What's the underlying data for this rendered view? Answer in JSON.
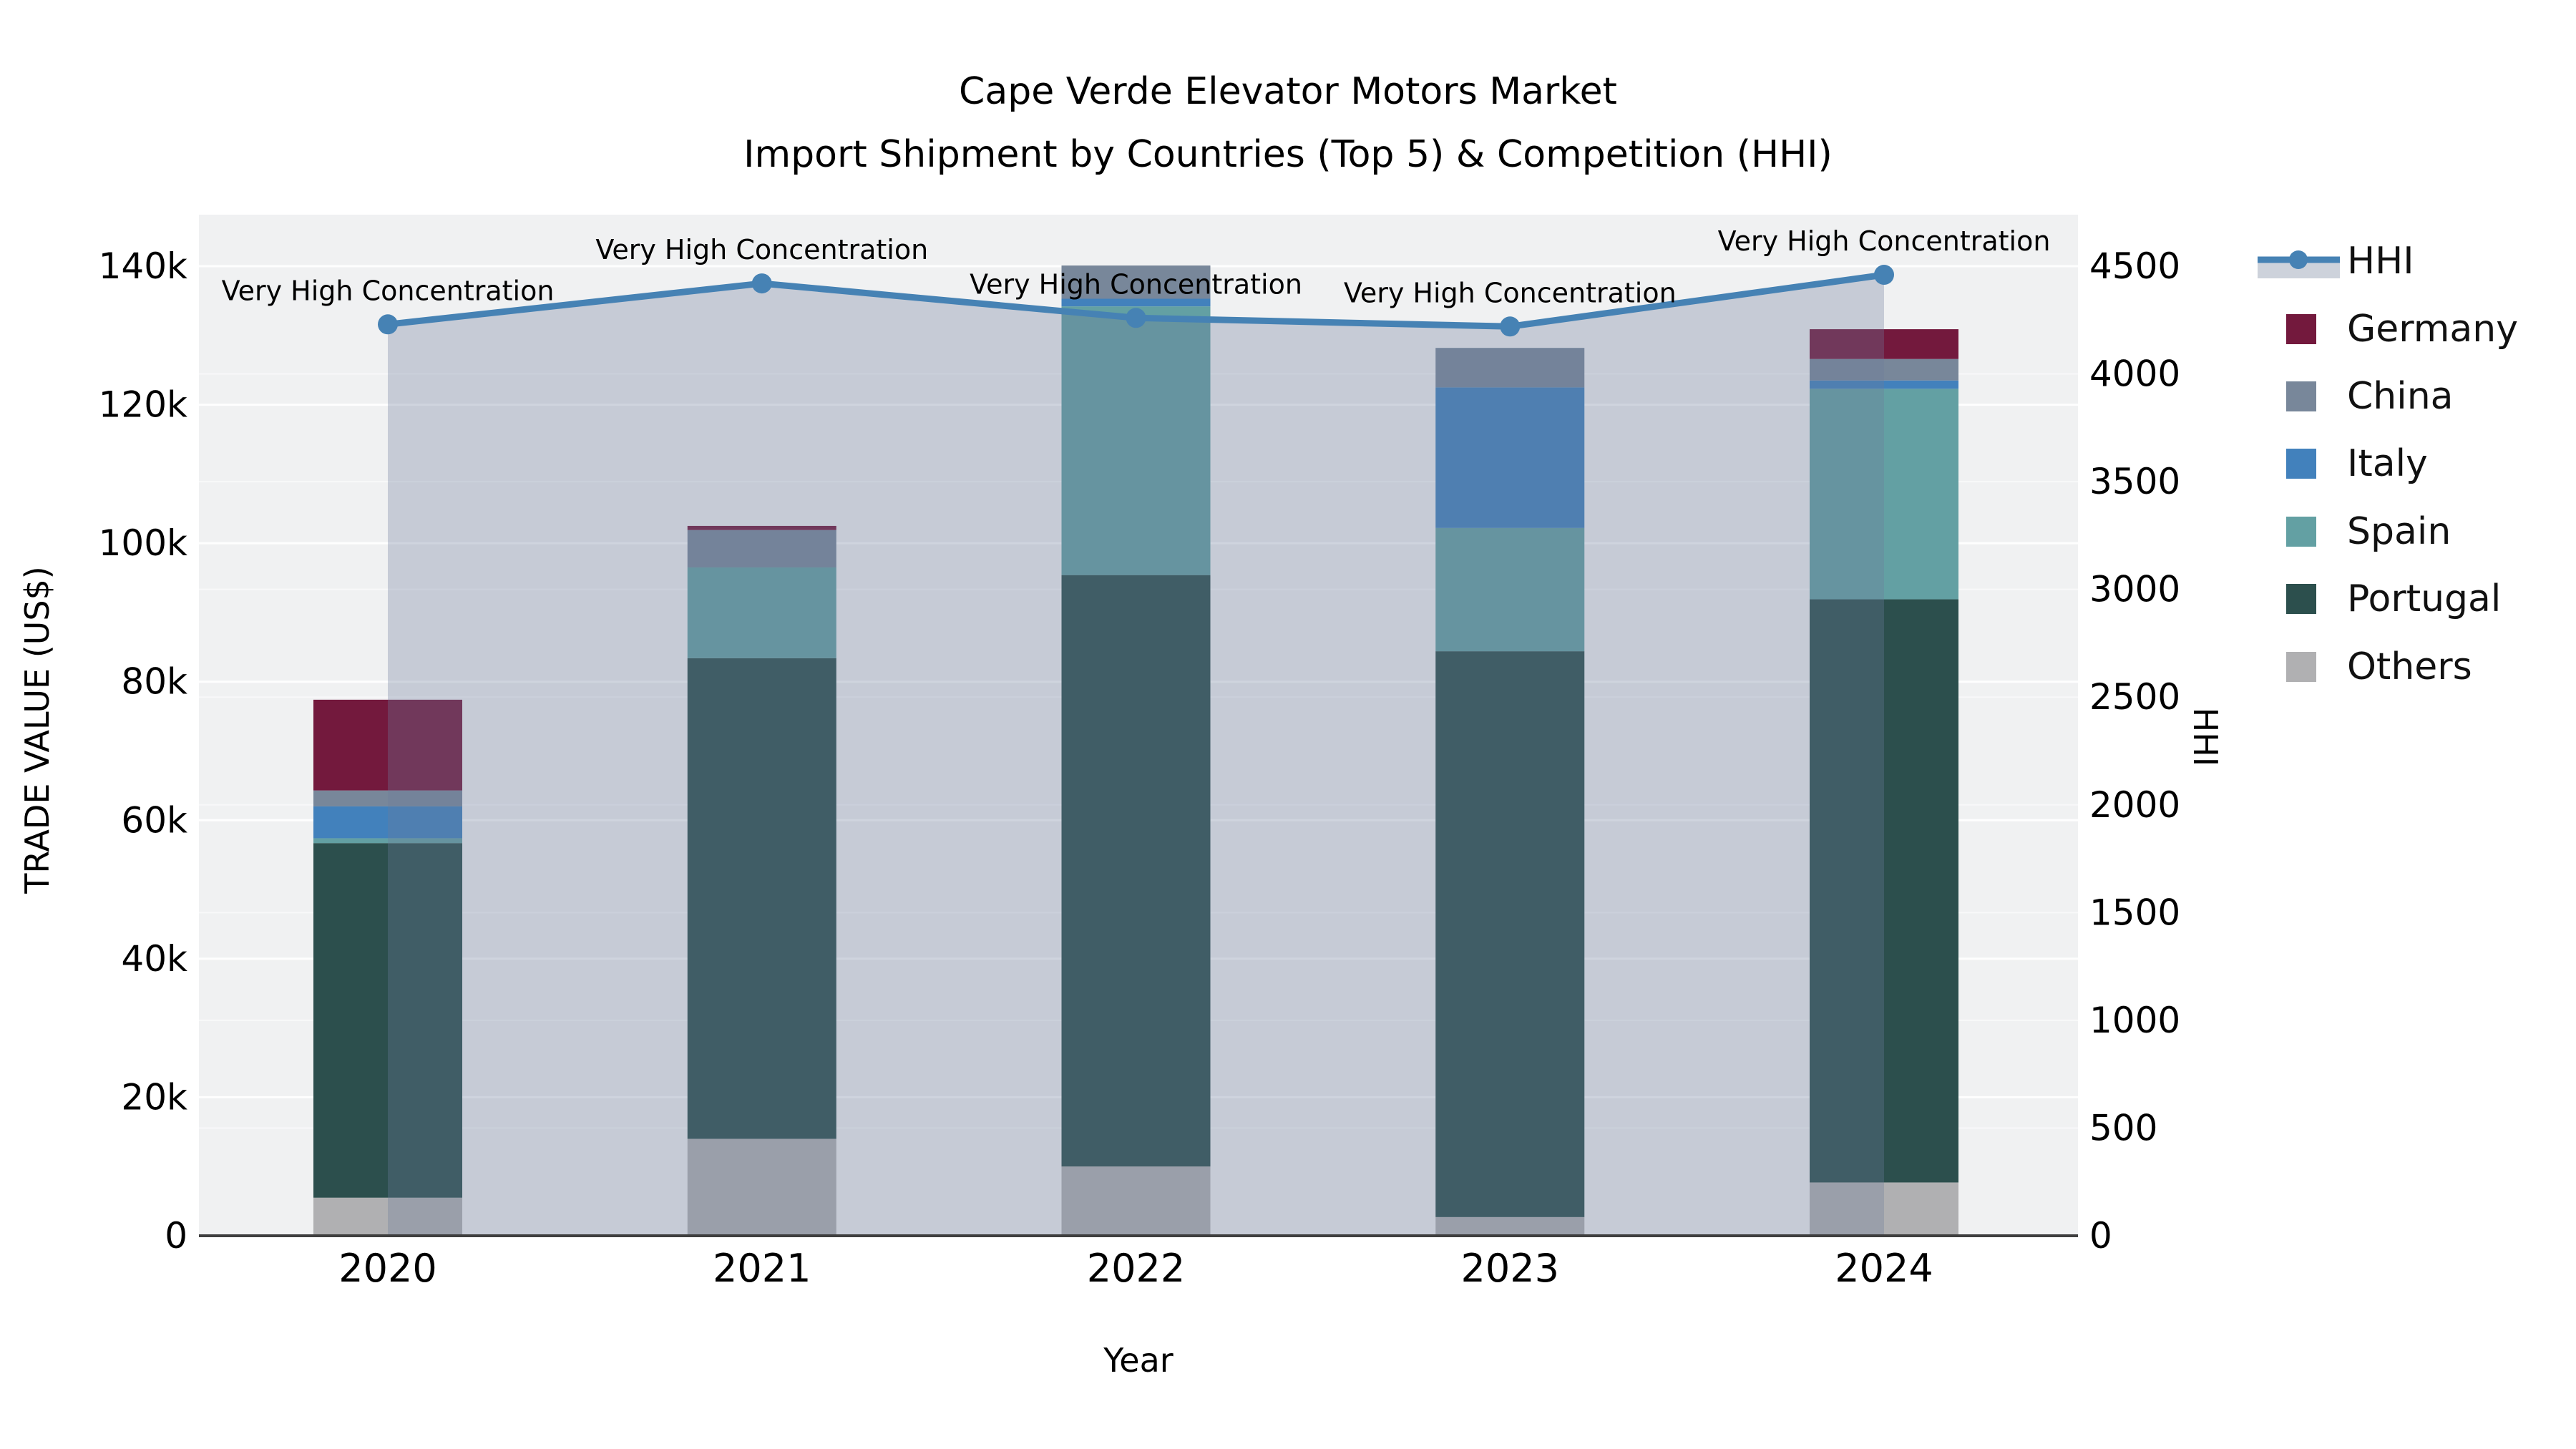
{
  "title": {
    "line1": "Cape Verde Elevator Motors Market",
    "line2": "Import Shipment by Countries (Top 5) & Competition (HHI)"
  },
  "axes": {
    "x": {
      "title": "Year",
      "categories": [
        "2020",
        "2021",
        "2022",
        "2023",
        "2024"
      ]
    },
    "y_left": {
      "title": "TRADE VALUE (US$)",
      "tick_labels": [
        "0",
        "20k",
        "40k",
        "60k",
        "80k",
        "100k",
        "120k",
        "140k"
      ],
      "tick_values_k": [
        0,
        20,
        40,
        60,
        80,
        100,
        120,
        140
      ],
      "range_k": [
        0,
        140
      ]
    },
    "y_right": {
      "title": "HHI",
      "tick_labels": [
        "0",
        "500",
        "1000",
        "1500",
        "2000",
        "2500",
        "3000",
        "3500",
        "4000",
        "4500"
      ],
      "tick_values": [
        0,
        500,
        1000,
        1500,
        2000,
        2500,
        3000,
        3500,
        4000,
        4500
      ],
      "range": [
        0,
        4500
      ]
    }
  },
  "legend": {
    "items": [
      {
        "label": "HHI",
        "type": "line",
        "color": "#4682B4"
      },
      {
        "label": "Germany",
        "type": "square",
        "color": "#73193D"
      },
      {
        "label": "China",
        "type": "square",
        "color": "#78879A"
      },
      {
        "label": "Italy",
        "type": "square",
        "color": "#4281BC"
      },
      {
        "label": "Spain",
        "type": "square",
        "color": "#63A0A3"
      },
      {
        "label": "Portugal",
        "type": "square",
        "color": "#2C4F4D"
      },
      {
        "label": "Others",
        "type": "square",
        "color": "#B0B0B2"
      }
    ]
  },
  "annotation_label": "Very High Concentration",
  "chart_data": {
    "type": "bar",
    "subtype": "stacked bars (left axis, US$) + HHI line with area fill (right axis)",
    "title": "Cape Verde Elevator Motors Market — Import Shipment by Countries (Top 5) & Competition (HHI)",
    "xlabel": "Year",
    "ylabel_left": "TRADE VALUE (US$)",
    "ylabel_right": "HHI",
    "categories": [
      2020,
      2021,
      2022,
      2023,
      2024
    ],
    "values_unit": "US$",
    "stack_order_bottom_to_top": [
      "Others",
      "Portugal",
      "Spain",
      "Italy",
      "China",
      "Germany"
    ],
    "series": [
      {
        "name": "Germany",
        "axis": "left",
        "values": [
          13100,
          600,
          0,
          0,
          4300
        ],
        "color": "#73193D"
      },
      {
        "name": "China",
        "axis": "left",
        "values": [
          2300,
          5400,
          4800,
          5700,
          3100
        ],
        "color": "#78879A"
      },
      {
        "name": "Italy",
        "axis": "left",
        "values": [
          4600,
          0,
          1100,
          20300,
          1200
        ],
        "color": "#4281BC"
      },
      {
        "name": "Spain",
        "axis": "left",
        "values": [
          700,
          13100,
          38800,
          17800,
          30400
        ],
        "color": "#63A0A3"
      },
      {
        "name": "Portugal",
        "axis": "left",
        "values": [
          51200,
          69400,
          85400,
          81700,
          84200
        ],
        "color": "#2C4F4D"
      },
      {
        "name": "Others",
        "axis": "left",
        "values": [
          5500,
          14000,
          10000,
          2700,
          7700
        ],
        "color": "#B0B0B2"
      }
    ],
    "bar_totals": [
      77400,
      102500,
      140100,
      128200,
      130900
    ],
    "hhi_line": {
      "name": "HHI",
      "axis": "right",
      "values": [
        4230,
        4420,
        4260,
        4220,
        4460
      ],
      "annotations": [
        "Very High Concentration",
        "Very High Concentration",
        "Very High Concentration",
        "Very High Concentration",
        "Very High Concentration"
      ],
      "line_color": "#4682B4",
      "area_fill_color": "rgba(109,125,154,0.32)"
    },
    "ylim_left": [
      0,
      140000
    ],
    "ylim_right": [
      0,
      4500
    ],
    "grid": true,
    "legend_position": "right",
    "plot_background": "#F0F1F2"
  }
}
